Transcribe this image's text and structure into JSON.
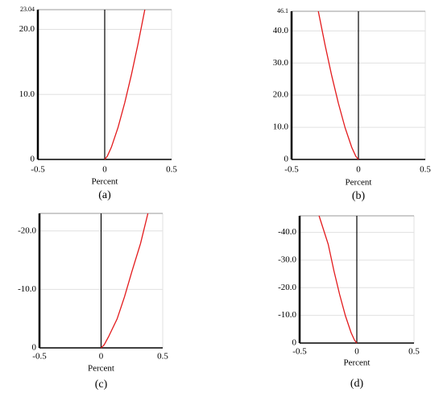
{
  "chart_data": [
    {
      "type": "line",
      "caption": "(a)",
      "x_label": "Percent",
      "xlim": [
        -0.5,
        0.5
      ],
      "xticks": [
        -0.5,
        0,
        0.5
      ],
      "ylim": [
        0,
        23.04
      ],
      "yticks": [
        0,
        {
          "value": 10,
          "label": "10.0"
        },
        {
          "value": 20,
          "label": "20.0"
        },
        23.04
      ],
      "grid": true,
      "series": [
        {
          "color": "#e31a1c",
          "x": [
            0,
            0.02,
            0.05,
            0.1,
            0.15,
            0.2,
            0.25,
            0.3
          ],
          "values": [
            0,
            0.52,
            1.88,
            4.95,
            8.73,
            13.06,
            17.85,
            23.04
          ]
        }
      ]
    },
    {
      "type": "line",
      "caption": "(b)",
      "x_label": "Percent",
      "xlim": [
        -0.5,
        0.5
      ],
      "xticks": [
        -0.5,
        0,
        0.5
      ],
      "ylim": [
        0,
        46.1
      ],
      "yticks": [
        0,
        {
          "value": 10,
          "label": "10.0"
        },
        {
          "value": 20,
          "label": "20.0"
        },
        {
          "value": 30,
          "label": "30.0"
        },
        {
          "value": 40,
          "label": "40.0"
        },
        46.1
      ],
      "grid": true,
      "series": [
        {
          "color": "#e31a1c",
          "x": [
            0,
            -0.02,
            -0.05,
            -0.1,
            -0.15,
            -0.2,
            -0.25,
            -0.3
          ],
          "values": [
            0,
            1.04,
            3.76,
            9.9,
            17.5,
            26.1,
            35.7,
            46.1
          ]
        }
      ]
    },
    {
      "type": "line",
      "caption": "(c)",
      "x_label": "Percent",
      "xlim": [
        -0.5,
        0.5
      ],
      "xticks": [
        -0.5,
        0,
        0.5
      ],
      "ylim": [
        0,
        -23
      ],
      "yticks": [
        0,
        {
          "value": -10,
          "label": "-10.0"
        },
        {
          "value": -20,
          "label": "-20.0"
        }
      ],
      "grid": true,
      "series": [
        {
          "color": "#e31a1c",
          "x": [
            0,
            0.025,
            0.06,
            0.13,
            0.19,
            0.25,
            0.32,
            0.38
          ],
          "values": [
            0,
            -0.52,
            -1.88,
            -4.95,
            -8.73,
            -13.06,
            -17.85,
            -23
          ]
        }
      ]
    },
    {
      "type": "line",
      "caption": "(d)",
      "x_label": "Percent",
      "xlim": [
        -0.5,
        0.5
      ],
      "xticks": [
        -0.5,
        0,
        0.5
      ],
      "ylim": [
        0,
        -46
      ],
      "yticks": [
        0,
        {
          "value": -10,
          "label": "-10.0"
        },
        {
          "value": -20,
          "label": "-20.0"
        },
        {
          "value": -30,
          "label": "-30.0"
        },
        {
          "value": -40,
          "label": "-40.0"
        }
      ],
      "grid": true,
      "series": [
        {
          "color": "#e31a1c",
          "x": [
            0,
            -0.02,
            -0.05,
            -0.1,
            -0.15,
            -0.2,
            -0.25,
            -0.33
          ],
          "values": [
            0,
            -1.04,
            -3.76,
            -9.9,
            -17.5,
            -26.1,
            -35.7,
            -46
          ]
        }
      ]
    }
  ]
}
